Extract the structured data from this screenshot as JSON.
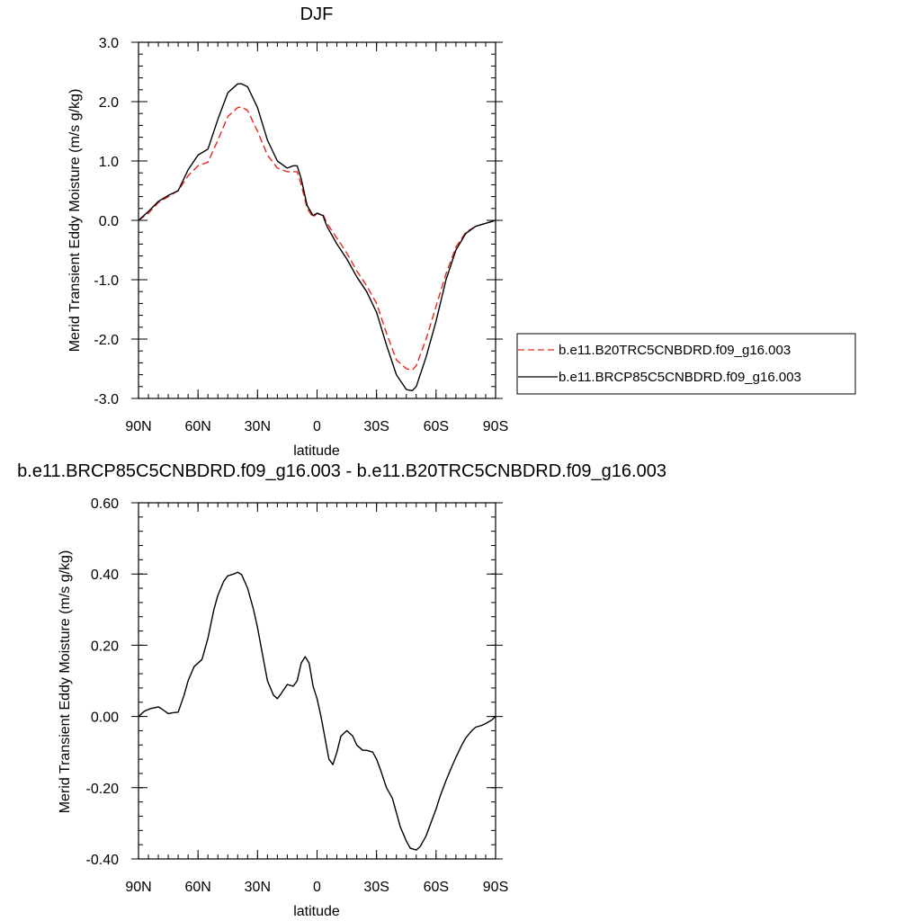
{
  "chart_data": [
    {
      "type": "line",
      "title": "DJF",
      "xlabel": "latitude",
      "ylabel": "Merid Transient Eddy Moisture (m/s g/kg)",
      "xlim": [
        90,
        -90
      ],
      "ylim": [
        -3.0,
        3.0
      ],
      "xticks": [
        90,
        60,
        30,
        0,
        -30,
        -60,
        -90
      ],
      "xtick_labels": [
        "90N",
        "60N",
        "30N",
        "0",
        "30S",
        "60S",
        "90S"
      ],
      "yticks": [
        3.0,
        2.0,
        1.0,
        0.0,
        -1.0,
        -2.0,
        -3.0
      ],
      "ytick_labels": [
        "3.0",
        "2.0",
        "1.0",
        "0.0",
        "-1.0",
        "-2.0",
        "-3.0"
      ],
      "grid": false,
      "legend_position": "right",
      "series": [
        {
          "name": "b.e11.B20TRC5CNBDRD.f09_g16.003",
          "color": "#e8281c",
          "dash": "dashed",
          "x": [
            90,
            85,
            80,
            75,
            70,
            65,
            60,
            55,
            50,
            45,
            40,
            38,
            35,
            30,
            25,
            20,
            15,
            10,
            8,
            5,
            2,
            0,
            -3,
            -5,
            -10,
            -15,
            -20,
            -25,
            -30,
            -35,
            -40,
            -45,
            -48,
            -50,
            -55,
            -60,
            -65,
            -70,
            -75,
            -80,
            -85,
            -90
          ],
          "y": [
            0.0,
            0.12,
            0.3,
            0.4,
            0.5,
            0.75,
            0.92,
            0.98,
            1.35,
            1.75,
            1.9,
            1.91,
            1.85,
            1.5,
            1.1,
            0.88,
            0.82,
            0.82,
            0.6,
            0.2,
            0.05,
            0.12,
            0.1,
            -0.05,
            -0.3,
            -0.55,
            -0.85,
            -1.1,
            -1.4,
            -1.9,
            -2.35,
            -2.5,
            -2.52,
            -2.45,
            -2.0,
            -1.45,
            -0.9,
            -0.45,
            -0.2,
            -0.1,
            -0.05,
            0.0
          ]
        },
        {
          "name": "b.e11.BRCP85C5CNBDRD.f09_g16.003",
          "color": "#000000",
          "dash": "solid",
          "x": [
            90,
            85,
            80,
            75,
            70,
            65,
            60,
            55,
            50,
            45,
            40,
            38,
            35,
            30,
            25,
            20,
            15,
            12,
            10,
            8,
            5,
            2,
            0,
            -3,
            -5,
            -10,
            -15,
            -20,
            -25,
            -30,
            -35,
            -40,
            -45,
            -48,
            -50,
            -55,
            -60,
            -65,
            -70,
            -75,
            -80,
            -85,
            -90
          ],
          "y": [
            0.0,
            0.15,
            0.32,
            0.42,
            0.5,
            0.85,
            1.1,
            1.2,
            1.7,
            2.15,
            2.3,
            2.3,
            2.25,
            1.9,
            1.35,
            1.0,
            0.88,
            0.92,
            0.92,
            0.7,
            0.25,
            0.08,
            0.12,
            0.08,
            -0.1,
            -0.4,
            -0.65,
            -0.95,
            -1.2,
            -1.55,
            -2.1,
            -2.6,
            -2.85,
            -2.87,
            -2.8,
            -2.3,
            -1.7,
            -1.0,
            -0.5,
            -0.22,
            -0.1,
            -0.05,
            0.0
          ]
        }
      ]
    },
    {
      "type": "line",
      "title": "b.e11.BRCP85C5CNBDRD.f09_g16.003 - b.e11.B20TRC5CNBDRD.f09_g16.003",
      "xlabel": "latitude",
      "ylabel": "Merid Transient Eddy Moisture (m/s g/kg)",
      "xlim": [
        90,
        -90
      ],
      "ylim": [
        -0.4,
        0.6
      ],
      "xticks": [
        90,
        60,
        30,
        0,
        -30,
        -60,
        -90
      ],
      "xtick_labels": [
        "90N",
        "60N",
        "30N",
        "0",
        "30S",
        "60S",
        "90S"
      ],
      "yticks": [
        0.6,
        0.4,
        0.2,
        0.0,
        -0.2,
        -0.4
      ],
      "ytick_labels": [
        "0.60",
        "0.40",
        "0.20",
        "0.00",
        "-0.20",
        "-0.40"
      ],
      "grid": false,
      "series": [
        {
          "color": "#000000",
          "dash": "solid",
          "x": [
            90,
            87,
            84,
            80,
            78,
            75,
            73,
            70,
            67,
            65,
            62,
            60,
            58,
            55,
            52,
            50,
            47,
            45,
            42,
            40,
            38,
            35,
            32,
            30,
            27,
            25,
            22,
            20,
            18,
            15,
            12,
            10,
            8,
            6,
            4,
            2,
            0,
            -2,
            -4,
            -6,
            -8,
            -10,
            -12,
            -15,
            -18,
            -20,
            -23,
            -25,
            -28,
            -30,
            -32,
            -35,
            -38,
            -40,
            -42,
            -45,
            -47,
            -50,
            -52,
            -55,
            -58,
            -60,
            -62,
            -65,
            -68,
            -70,
            -73,
            -75,
            -78,
            -80,
            -83,
            -85,
            -88,
            -90
          ],
          "y": [
            0.0,
            0.015,
            0.022,
            0.027,
            0.02,
            0.008,
            0.01,
            0.012,
            0.06,
            0.1,
            0.14,
            0.15,
            0.16,
            0.22,
            0.3,
            0.34,
            0.38,
            0.395,
            0.4,
            0.405,
            0.398,
            0.36,
            0.3,
            0.25,
            0.16,
            0.1,
            0.06,
            0.05,
            0.065,
            0.09,
            0.085,
            0.1,
            0.15,
            0.168,
            0.15,
            0.085,
            0.05,
            0.0,
            -0.06,
            -0.12,
            -0.135,
            -0.1,
            -0.055,
            -0.04,
            -0.055,
            -0.08,
            -0.095,
            -0.095,
            -0.1,
            -0.12,
            -0.15,
            -0.2,
            -0.23,
            -0.27,
            -0.31,
            -0.35,
            -0.37,
            -0.375,
            -0.365,
            -0.335,
            -0.29,
            -0.26,
            -0.225,
            -0.18,
            -0.14,
            -0.115,
            -0.08,
            -0.06,
            -0.04,
            -0.03,
            -0.025,
            -0.02,
            -0.01,
            0.0
          ]
        }
      ]
    }
  ]
}
